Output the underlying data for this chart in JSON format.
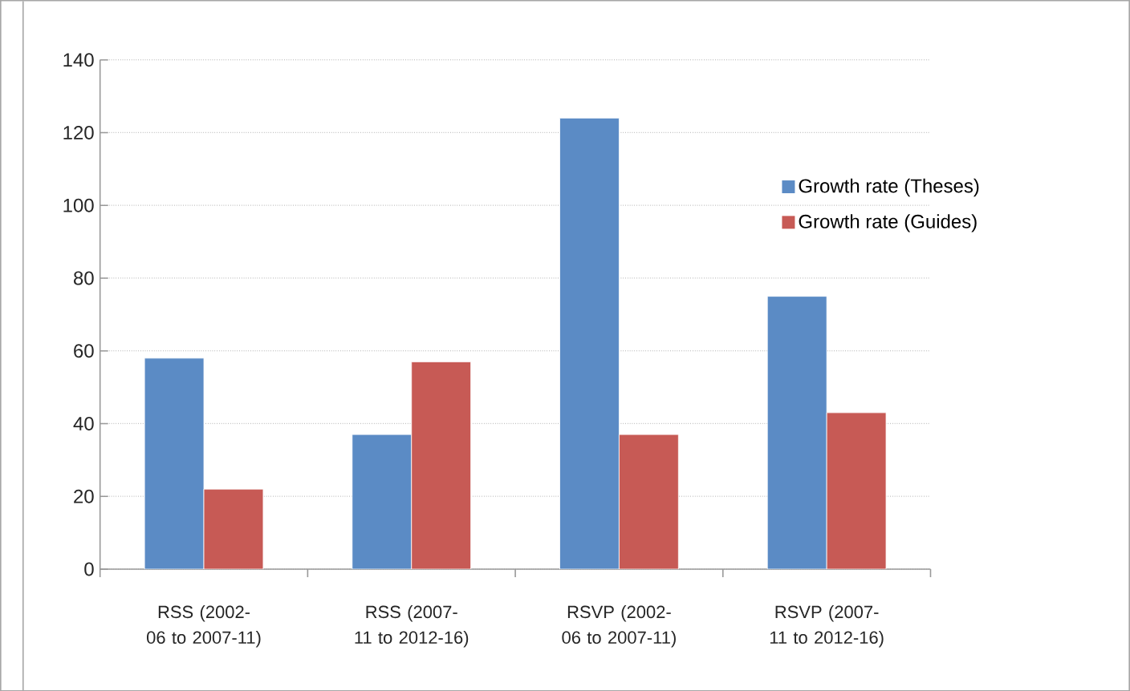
{
  "chart_data": {
    "type": "bar",
    "categories": [
      "RSS (2002-06 to 2007-11)",
      "RSS (2007-11 to 2012-16)",
      "RSVP (2002-06 to 2007-11)",
      "RSVP (2007-11 to 2012-16)"
    ],
    "series": [
      {
        "name": "Growth rate (Theses)",
        "color": "#5b8bc5",
        "values": [
          58,
          37,
          124,
          75
        ]
      },
      {
        "name": "Growth rate (Guides)",
        "color": "#c75a55",
        "values": [
          22,
          57,
          37,
          43
        ]
      }
    ],
    "ylim": [
      0,
      140
    ],
    "yticks": [
      0,
      20,
      40,
      60,
      80,
      100,
      120,
      140
    ],
    "grid": "y",
    "legend": "right"
  }
}
